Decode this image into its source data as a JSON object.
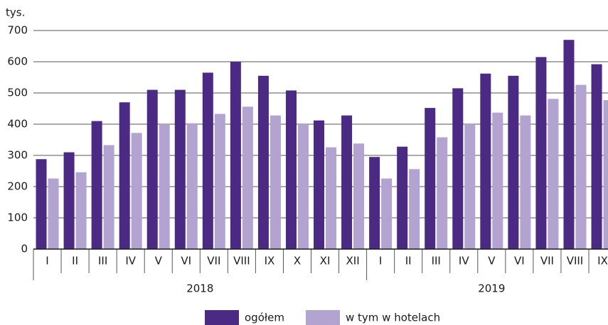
{
  "chart_data": {
    "type": "bar",
    "y_label": "tys.",
    "categories": [
      "I",
      "II",
      "III",
      "IV",
      "V",
      "VI",
      "VII",
      "VIII",
      "IX",
      "X",
      "XI",
      "XII",
      "I",
      "II",
      "III",
      "IV",
      "V",
      "VI",
      "VII",
      "VIII",
      "IX"
    ],
    "groups": [
      "2018",
      "2019"
    ],
    "series": [
      {
        "name": "ogółem",
        "color": "#4b2a83",
        "values": [
          288,
          310,
          410,
          470,
          510,
          510,
          565,
          600,
          555,
          508,
          412,
          428,
          295,
          328,
          452,
          515,
          562,
          555,
          615,
          670,
          592
        ]
      },
      {
        "name": "w tym w hotelach",
        "color": "#b3a3d0",
        "values": [
          226,
          246,
          333,
          372,
          400,
          403,
          433,
          456,
          428,
          400,
          326,
          338,
          226,
          256,
          358,
          400,
          437,
          428,
          481,
          526,
          477
        ]
      }
    ],
    "ylim": [
      0,
      700
    ],
    "yticks": [
      0,
      100,
      200,
      300,
      400,
      500,
      600,
      700
    ],
    "grid": true,
    "legend": "bottom"
  }
}
